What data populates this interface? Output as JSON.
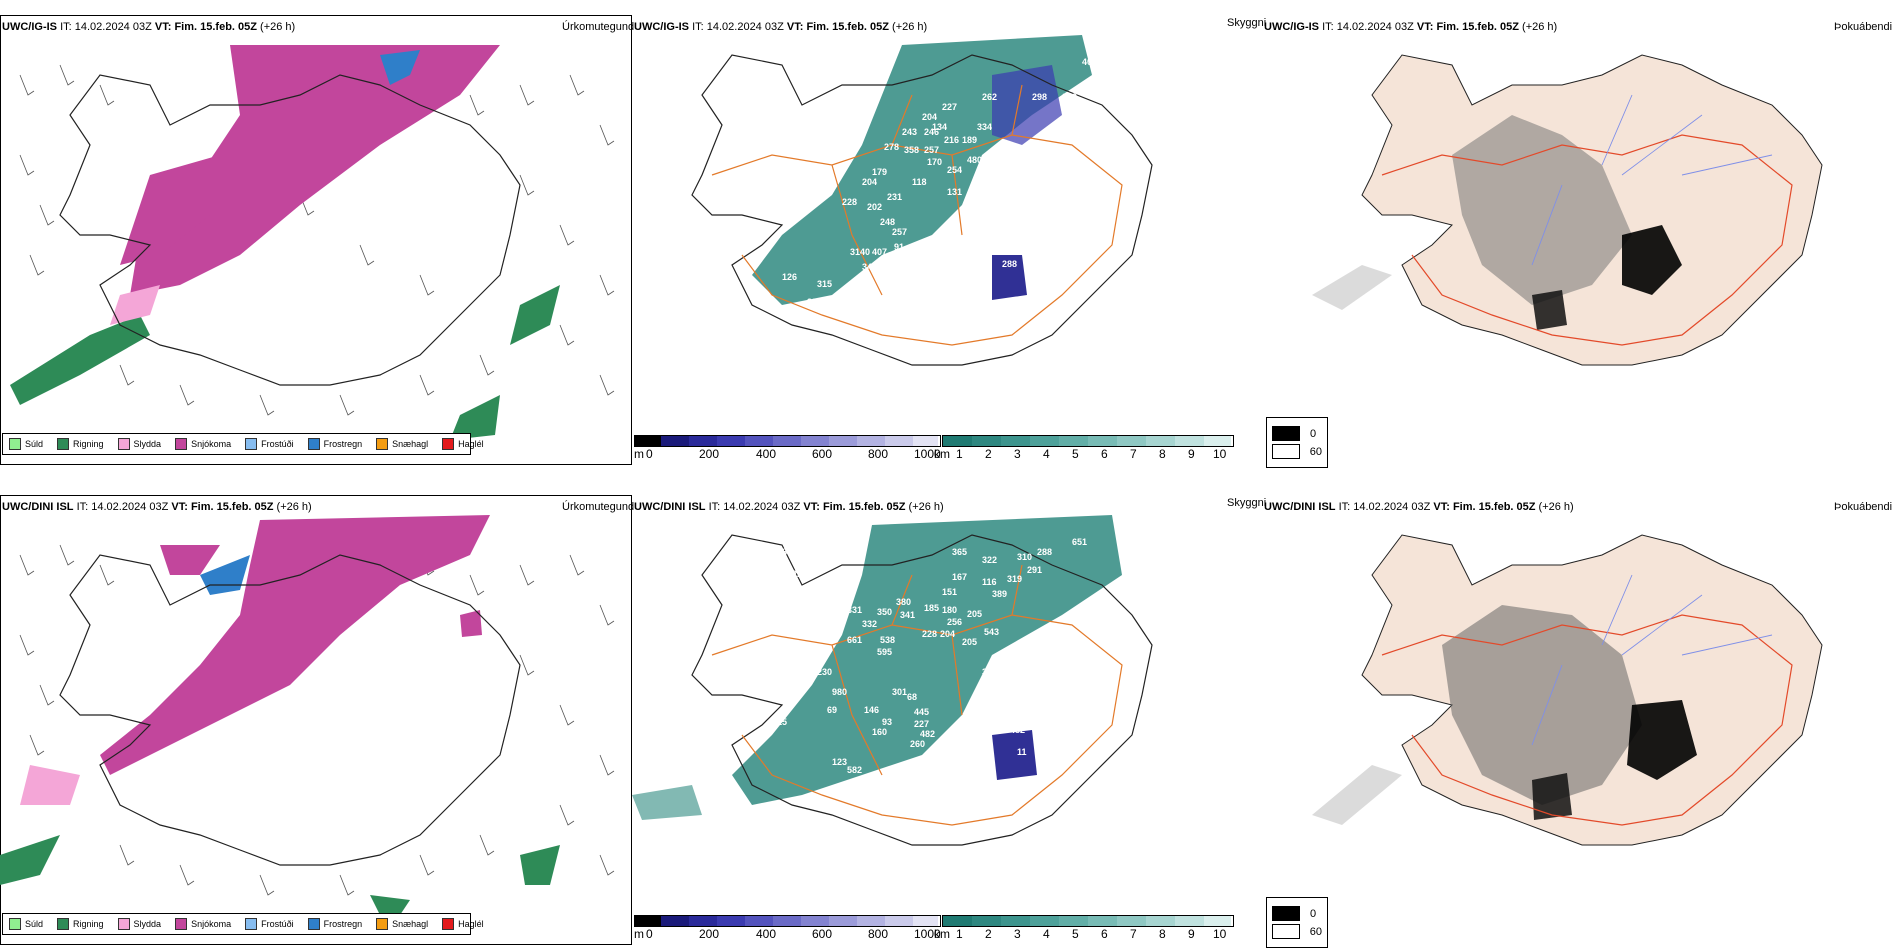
{
  "rows": [
    {
      "model": "UWC/IG-IS",
      "it_label": "IT:",
      "it_value": "14.02.2024 03Z",
      "vt_label": "VT:",
      "vt_value": "Fim. 15.feb. 05Z",
      "lead": "(+26 h)",
      "numbers": [
        "401",
        "262",
        "298",
        "249",
        "227",
        "204",
        "134",
        "334",
        "243",
        "246",
        "216",
        "189",
        "278",
        "358",
        "257",
        "480",
        "170",
        "254",
        "179",
        "21",
        "204",
        "118",
        "131",
        "228",
        "231",
        "202",
        "248",
        "257",
        "91",
        "122",
        "3140",
        "407",
        "34",
        "281",
        "255",
        "288",
        "126",
        "315",
        "138",
        "131",
        "83"
      ]
    },
    {
      "model": "UWC/DINI ISL",
      "it_label": "IT:",
      "it_value": "14.02.2024 03Z",
      "vt_label": "VT:",
      "vt_value": "Fim. 15.feb. 05Z",
      "lead": "(+26 h)",
      "numbers": [
        "168",
        "365",
        "310",
        "288",
        "651",
        "227",
        "267",
        "322",
        "291",
        "167",
        "116",
        "319",
        "151",
        "380",
        "350",
        "389",
        "331",
        "341",
        "185",
        "180",
        "205",
        "332",
        "256",
        "543",
        "661",
        "538",
        "228",
        "204",
        "205",
        "595",
        "373",
        "230",
        "301",
        "68",
        "980",
        "445",
        "387",
        "227",
        "69",
        "146",
        "93",
        "215",
        "160",
        "482",
        "260",
        "123",
        "582",
        "141",
        "11",
        "482"
      ]
    }
  ],
  "labels": {
    "precip": "Úrkomutegund",
    "sky": "Skyggni",
    "fog": "Þokuábendi"
  },
  "precip_legend": [
    {
      "label": "Súld",
      "color": "#90ee90"
    },
    {
      "label": "Rigning",
      "color": "#2e8b57"
    },
    {
      "label": "Slydda",
      "color": "#f4a6d7"
    },
    {
      "label": "Snjókoma",
      "color": "#c2469c"
    },
    {
      "label": "Frostúði",
      "color": "#87bdf0"
    },
    {
      "label": "Frostregn",
      "color": "#2f7fc9"
    },
    {
      "label": "Snæhagl",
      "color": "#f39c12"
    },
    {
      "label": "Haglél",
      "color": "#e31a1c"
    }
  ],
  "cbar_m": {
    "unit": "m",
    "ticks": [
      "0",
      "200",
      "400",
      "600",
      "800",
      "1000"
    ],
    "colors": [
      "#000000",
      "#1a1a7a",
      "#2a2a9a",
      "#3b3bb0",
      "#5353bd",
      "#6b6bc7",
      "#8383d0",
      "#9b9bd9",
      "#b3b3e2",
      "#cbcbeb",
      "#e3e3f4"
    ]
  },
  "cbar_km": {
    "unit": "km",
    "ticks": [
      "1",
      "2",
      "3",
      "4",
      "5",
      "6",
      "7",
      "8",
      "9",
      "10"
    ],
    "colors": [
      "#1f7a72",
      "#2e8780",
      "#3d948d",
      "#4ea19a",
      "#62aea7",
      "#78bbb5",
      "#8fc8c3",
      "#a7d5d1",
      "#c0e2df",
      "#daefed"
    ]
  },
  "fog_legend": [
    {
      "label": "0",
      "color": "#000000"
    },
    {
      "label": "60",
      "color": "#ffffff"
    }
  ],
  "colors": {
    "snow": "#c2469c",
    "rain": "#2e8b57",
    "sleet": "#f4a6d7",
    "freezing": "#2f7fc9",
    "teal": "#2f8a80",
    "blue_dark": "#1a1a8a",
    "road": "#e37a2a",
    "coast": "#222222",
    "fog_land": "#f5e4d8",
    "fog_road": "#e34a2a",
    "fog_river": "#7f8fe8"
  }
}
